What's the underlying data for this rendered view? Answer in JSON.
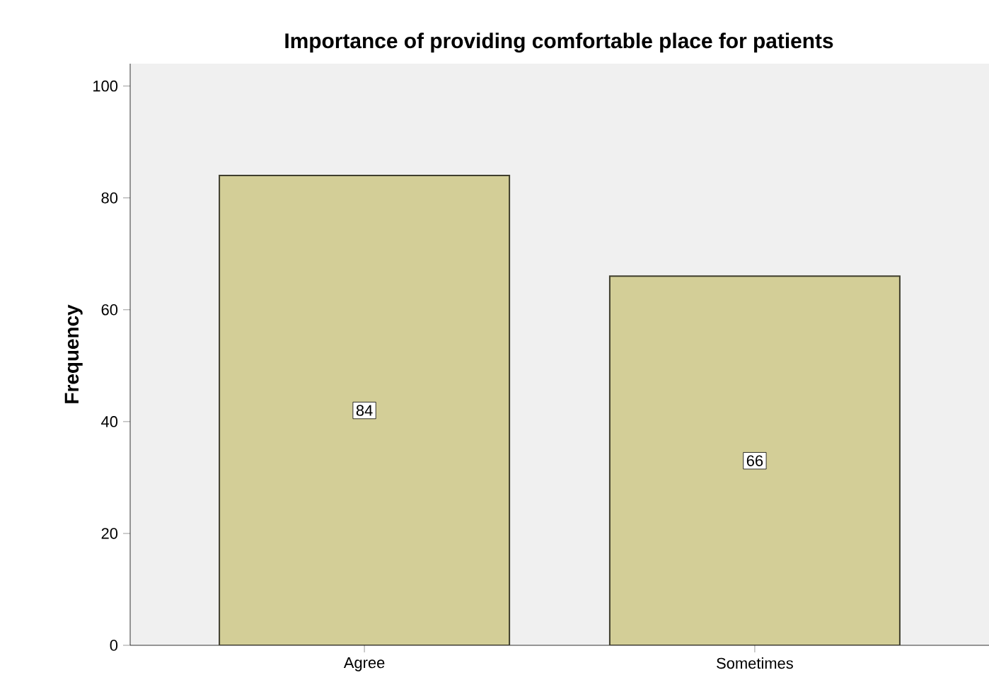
{
  "chart_data": {
    "type": "bar",
    "title": "Importance of providing comfortable place for patients",
    "ylabel": "Frequency",
    "categories": [
      "Agree",
      "Sometimes"
    ],
    "values": [
      84,
      66
    ],
    "color": "#d3ce97",
    "ylim": [
      0,
      104
    ],
    "yticks": [
      0,
      20,
      40,
      60,
      80,
      100
    ],
    "data_labels": true
  }
}
